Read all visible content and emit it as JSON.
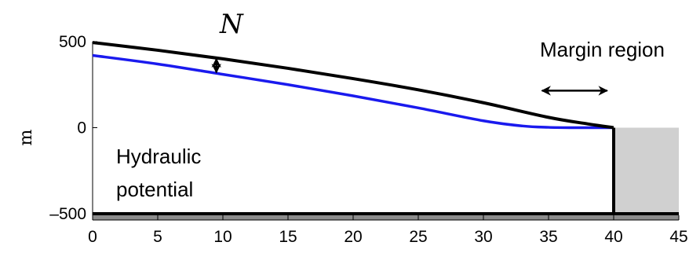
{
  "chart_data": {
    "type": "line",
    "xlabel": "",
    "ylabel": "m",
    "xlim": [
      0,
      45
    ],
    "ylim": [
      -500,
      500
    ],
    "x_ticks": [
      "0",
      "5",
      "10",
      "15",
      "20",
      "25",
      "30",
      "35",
      "40",
      "45"
    ],
    "y_ticks": [
      "500",
      "0",
      "–500"
    ],
    "y_tick_values": [
      500,
      0,
      -500
    ],
    "series": [
      {
        "role": "surface",
        "color": "#000000",
        "x": [
          0,
          5,
          10,
          15,
          20,
          25,
          30,
          35,
          38,
          40
        ],
        "y": [
          495,
          450,
          400,
          345,
          285,
          220,
          145,
          60,
          22,
          0
        ]
      },
      {
        "role": "hydraulic",
        "color": "#1a1aee",
        "x": [
          0,
          5,
          10,
          15,
          20,
          25,
          30,
          33,
          35,
          37,
          38,
          39,
          40
        ],
        "y": [
          420,
          370,
          310,
          250,
          185,
          115,
          40,
          10,
          2,
          0,
          0,
          0,
          0
        ]
      }
    ],
    "cliff_x": 40,
    "bed_y": -500,
    "ocean": {
      "x0": 40,
      "x1": 45,
      "y0": 0,
      "y1": -500,
      "color": "#d0d0d0"
    },
    "bed_color": "#8c8c8c",
    "annotations": {
      "n_symbol": "N",
      "n_arrow_x": 9.5,
      "margin_label": "Margin region",
      "margin_arrow_x": [
        34.5,
        39.5
      ],
      "margin_arrow_y": 215,
      "hydraulic_line1": "Hydraulic",
      "hydraulic_line2": "potential"
    }
  }
}
